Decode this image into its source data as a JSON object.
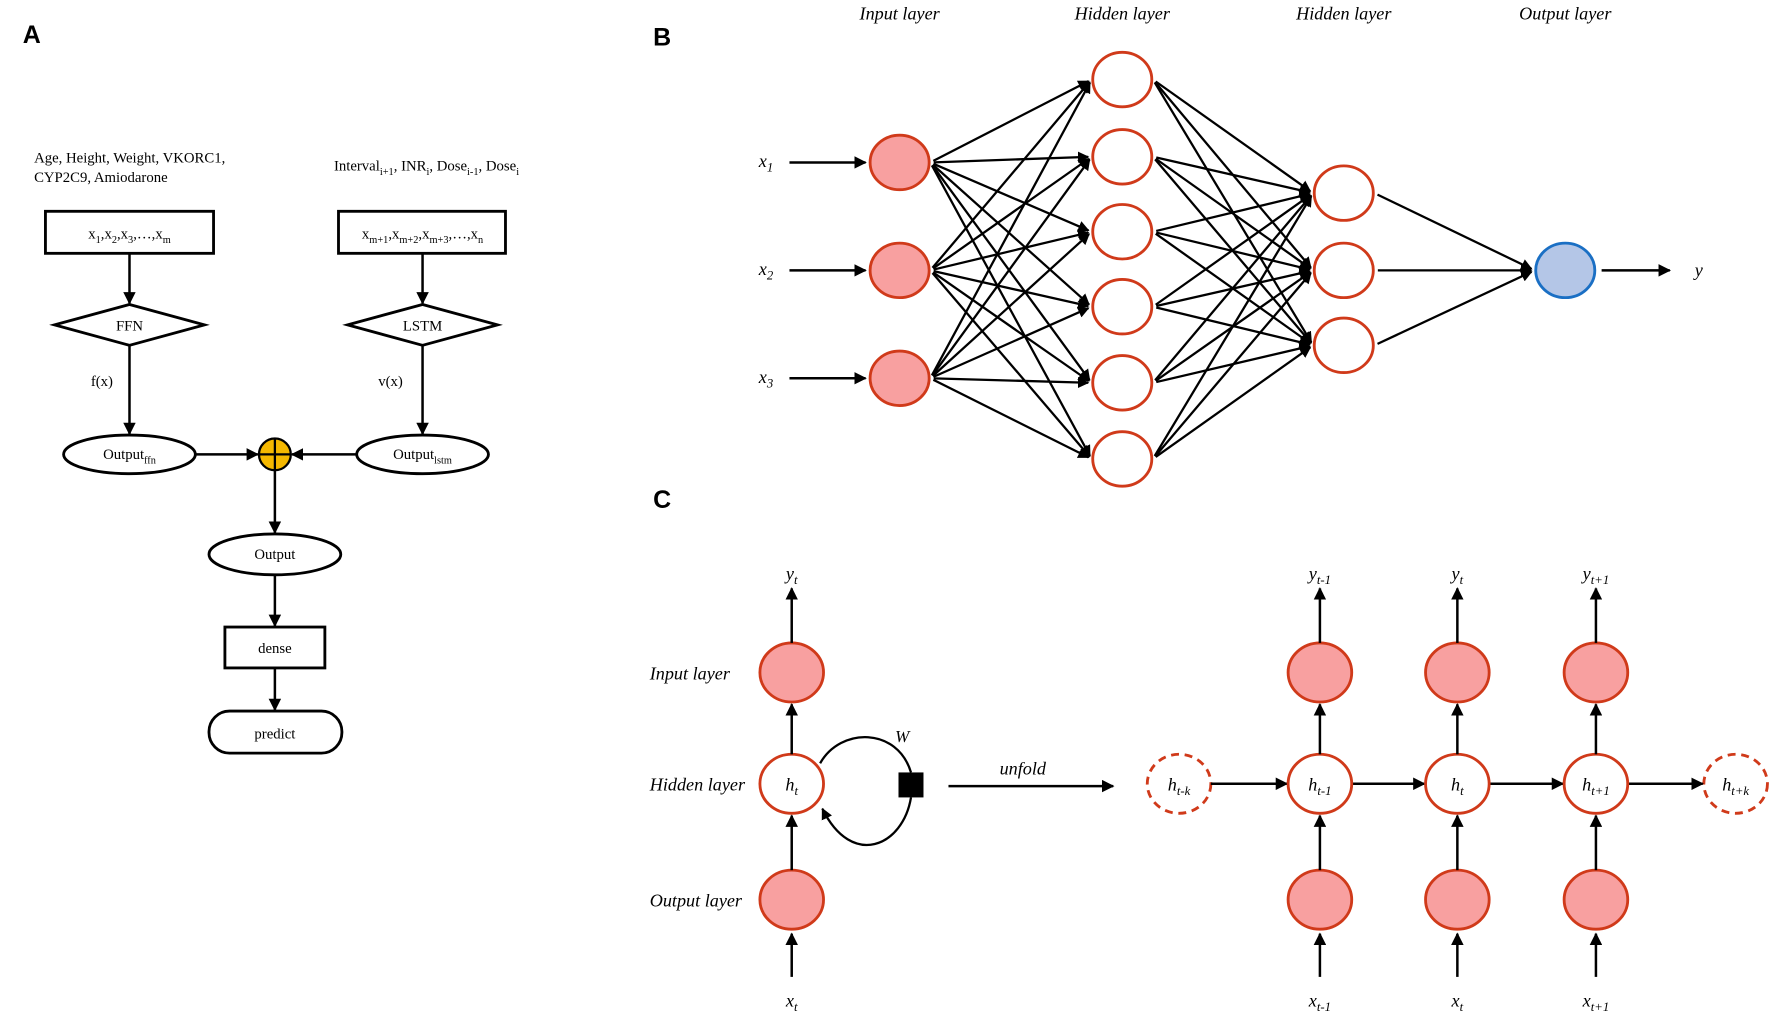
{
  "panels": {
    "a": "A",
    "b": "B",
    "c": "C"
  },
  "panel_a": {
    "features_left": [
      "Age, Height, Weight, VKORC1,",
      "CYP2C9, Amiodarone"
    ],
    "features_right": "Interval<sub>i+1</sub>, INR<sub>i</sub>, Dose<sub>i-1</sub>, Dose<sub>i</sub>",
    "input_left": "x<sub>1</sub>,x<sub>2</sub>,x<sub>3</sub>,…,x<sub>m</sub>",
    "input_right": "x<sub>m+1</sub>,x<sub>m+2</sub>,x<sub>m+3</sub>,…,x<sub>n</sub>",
    "model_left": "FFN",
    "model_right": "LSTM",
    "func_left": "f(x)",
    "func_right": "v(x)",
    "output_left": "Output<sub>ffn</sub>",
    "output_right": "Output<sub>lstm</sub>",
    "output": "Output",
    "dense": "dense",
    "predict": "predict",
    "combine_color": "#f5b800"
  },
  "panel_b": {
    "layer_labels": [
      "Input layer",
      "Hidden layer",
      "Hidden layer",
      "Output layer"
    ],
    "inputs": [
      "x<sub>1</sub>",
      "x<sub>2</sub>",
      "x<sub>3</sub>"
    ],
    "output": "y",
    "layer_sizes": [
      3,
      6,
      3,
      1
    ],
    "input_fill": "#f8a0a0",
    "node_stroke": "#d03a1a",
    "output_fill": "#b4c6e7",
    "output_stroke": "#1a6fc4"
  },
  "panel_c": {
    "row_labels": [
      "Input layer",
      "Hidden layer",
      "Output layer"
    ],
    "folded": {
      "y": "y<sub>t</sub>",
      "h": "h<sub>t</sub>",
      "x": "x<sub>t</sub>",
      "weight": "W"
    },
    "unfold_label": "unfold",
    "unrolled": [
      {
        "y": "y<sub>t-1</sub>",
        "h": "h<sub>t-1</sub>",
        "x": "x<sub>t-1</sub>"
      },
      {
        "y": "y<sub>t</sub>",
        "h": "h<sub>t</sub>",
        "x": "x<sub>t</sub>"
      },
      {
        "y": "y<sub>t+1</sub>",
        "h": "h<sub>t+1</sub>",
        "x": "x<sub>t+1</sub>"
      }
    ],
    "edge_states": [
      "h<sub>t-k</sub>",
      "h<sub>t+k</sub>"
    ]
  }
}
